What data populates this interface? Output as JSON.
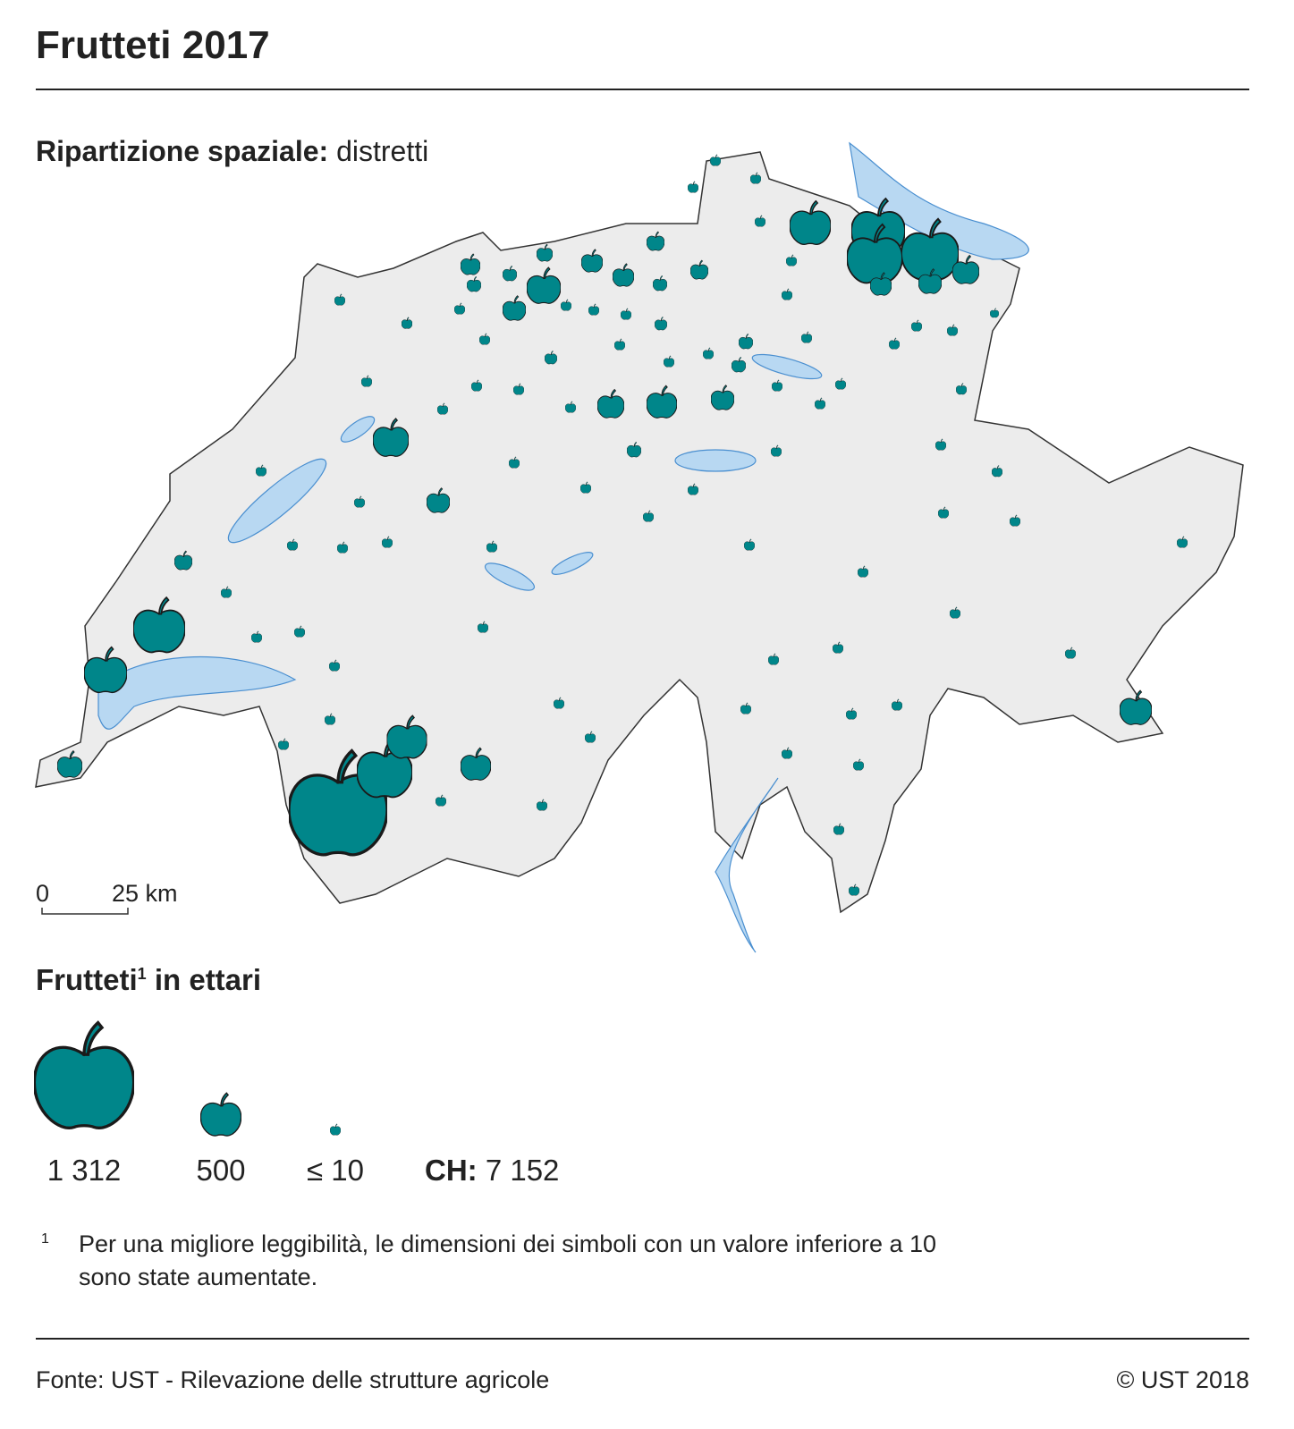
{
  "header": {
    "title": "Frutteti 2017",
    "subtitle_bold": "Ripartizione spaziale:",
    "subtitle_rest": "distretti"
  },
  "scale_bar": {
    "start": "0",
    "end": "25 km"
  },
  "legend": {
    "title": "Frutteti",
    "title_sup": "1",
    "title_rest": "in ettari",
    "items": [
      {
        "label": "1 312"
      },
      {
        "label": "500"
      },
      {
        "label": "≤ 10"
      }
    ],
    "total_bold": "CH:",
    "total": "7 152"
  },
  "footnote": {
    "marker": "1",
    "lines": [
      "Per una migliore leggibilità, le dimensioni dei simboli con un valore inferiore a 10",
      "sono state aumentate."
    ]
  },
  "footer": {
    "source": "Fonte: UST - Rilevazione delle strutture agricole",
    "copyright": "© UST 2018"
  }
}
